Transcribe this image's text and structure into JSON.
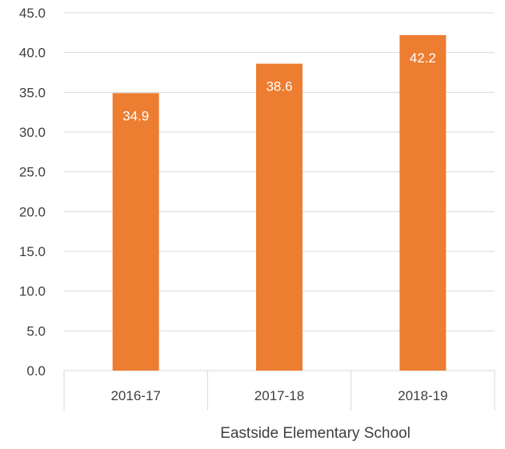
{
  "chart_data": {
    "type": "bar",
    "title": "",
    "xlabel": "",
    "ylabel": "",
    "group_label": "Eastside Elementary School",
    "categories": [
      "2016-17",
      "2017-18",
      "2018-19"
    ],
    "values": [
      34.9,
      38.6,
      42.2
    ],
    "value_labels": [
      "34.9",
      "38.6",
      "42.2"
    ],
    "ylim": [
      0,
      45
    ],
    "yticks": [
      "0.0",
      "5.0",
      "10.0",
      "15.0",
      "20.0",
      "25.0",
      "30.0",
      "35.0",
      "40.0",
      "45.0"
    ],
    "grid": true,
    "legend": "none",
    "bar_color": "#ED7D31",
    "label_color": "#FFFFFF",
    "grid_color": "#D9D9D9"
  }
}
